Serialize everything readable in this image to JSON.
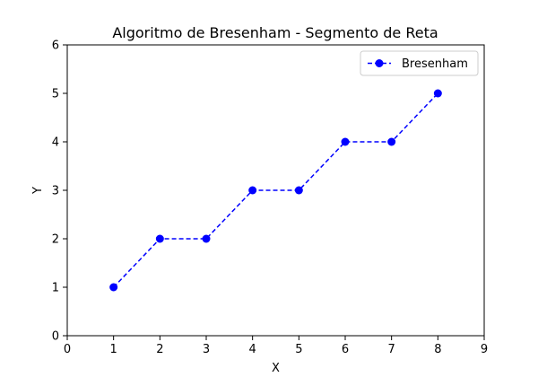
{
  "chart_data": {
    "type": "line",
    "title": "Algoritmo de Bresenham - Segmento de Reta",
    "xlabel": "X",
    "ylabel": "Y",
    "xlim": [
      0,
      9
    ],
    "ylim": [
      0,
      6
    ],
    "xticks": [
      0,
      1,
      2,
      3,
      4,
      5,
      6,
      7,
      8,
      9
    ],
    "yticks": [
      0,
      1,
      2,
      3,
      4,
      5,
      6
    ],
    "grid": false,
    "legend_position": "top-right",
    "series": [
      {
        "name": "Bresenham",
        "color": "#0000ff",
        "line_style": "dashed",
        "marker": "circle",
        "x": [
          1,
          2,
          3,
          4,
          5,
          6,
          7,
          8
        ],
        "y": [
          1,
          2,
          2,
          3,
          3,
          4,
          4,
          5
        ]
      }
    ]
  }
}
